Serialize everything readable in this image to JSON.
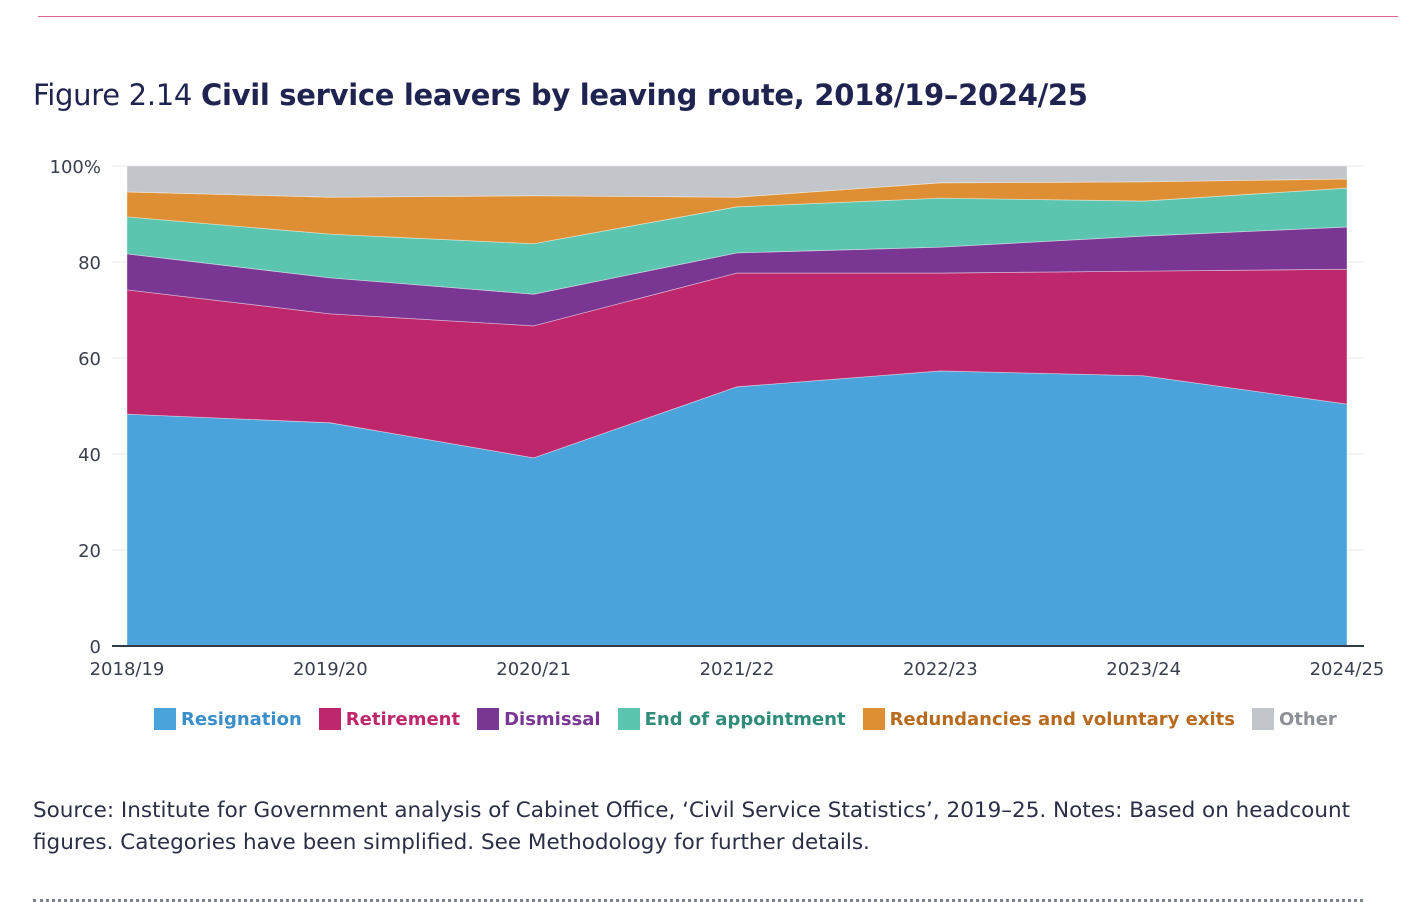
{
  "figure": {
    "number": "Figure 2.14",
    "title": "Civil service leavers by leaving route, 2018/19–2024/25"
  },
  "chart_data": {
    "type": "area",
    "stacked": true,
    "normalized": true,
    "title": "Civil service leavers by leaving route, 2018/19–2024/25",
    "xlabel": "",
    "ylabel": "",
    "ylim": [
      0,
      100
    ],
    "yticks": [
      0,
      20,
      40,
      60,
      80,
      100
    ],
    "ytick_labels": [
      "0",
      "20",
      "40",
      "60",
      "80",
      "100%"
    ],
    "grid": true,
    "legend_position": "bottom",
    "categories": [
      "2018/19",
      "2019/20",
      "2020/21",
      "2021/22",
      "2022/23",
      "2023/24",
      "2024/25"
    ],
    "series": [
      {
        "name": "Resignation",
        "color": "#4ba3db",
        "label_color": "#3a8fca",
        "values": [
          48.3,
          46.5,
          39.2,
          54.0,
          57.3,
          56.3,
          50.4
        ]
      },
      {
        "name": "Retirement",
        "color": "#bf276c",
        "label_color": "#bf276c",
        "values": [
          25.9,
          22.7,
          27.5,
          23.7,
          20.4,
          21.8,
          28.1
        ]
      },
      {
        "name": "Dismissal",
        "color": "#7a3693",
        "label_color": "#7a3693",
        "values": [
          7.5,
          7.5,
          6.6,
          4.2,
          5.4,
          7.3,
          8.8
        ]
      },
      {
        "name": "End of appointment",
        "color": "#5bc5b0",
        "label_color": "#2e8c79",
        "values": [
          7.7,
          9.1,
          10.5,
          9.6,
          10.2,
          7.3,
          8.1
        ]
      },
      {
        "name": "Redundancies and voluntary exits",
        "color": "#df8f33",
        "label_color": "#b86a1f",
        "values": [
          5.2,
          7.7,
          10.0,
          2.0,
          3.2,
          4.0,
          1.9
        ]
      },
      {
        "name": "Other",
        "color": "#c2c5c9",
        "label_color": "#8d9096",
        "values": [
          5.4,
          6.5,
          6.2,
          6.5,
          3.5,
          3.3,
          2.7
        ]
      }
    ]
  },
  "source_note": "Source: Institute for Government analysis of Cabinet Office, ‘Civil Service Statistics’, 2019–25. Notes: Based on headcount figures. Categories have been simplified. See Methodology for further details."
}
